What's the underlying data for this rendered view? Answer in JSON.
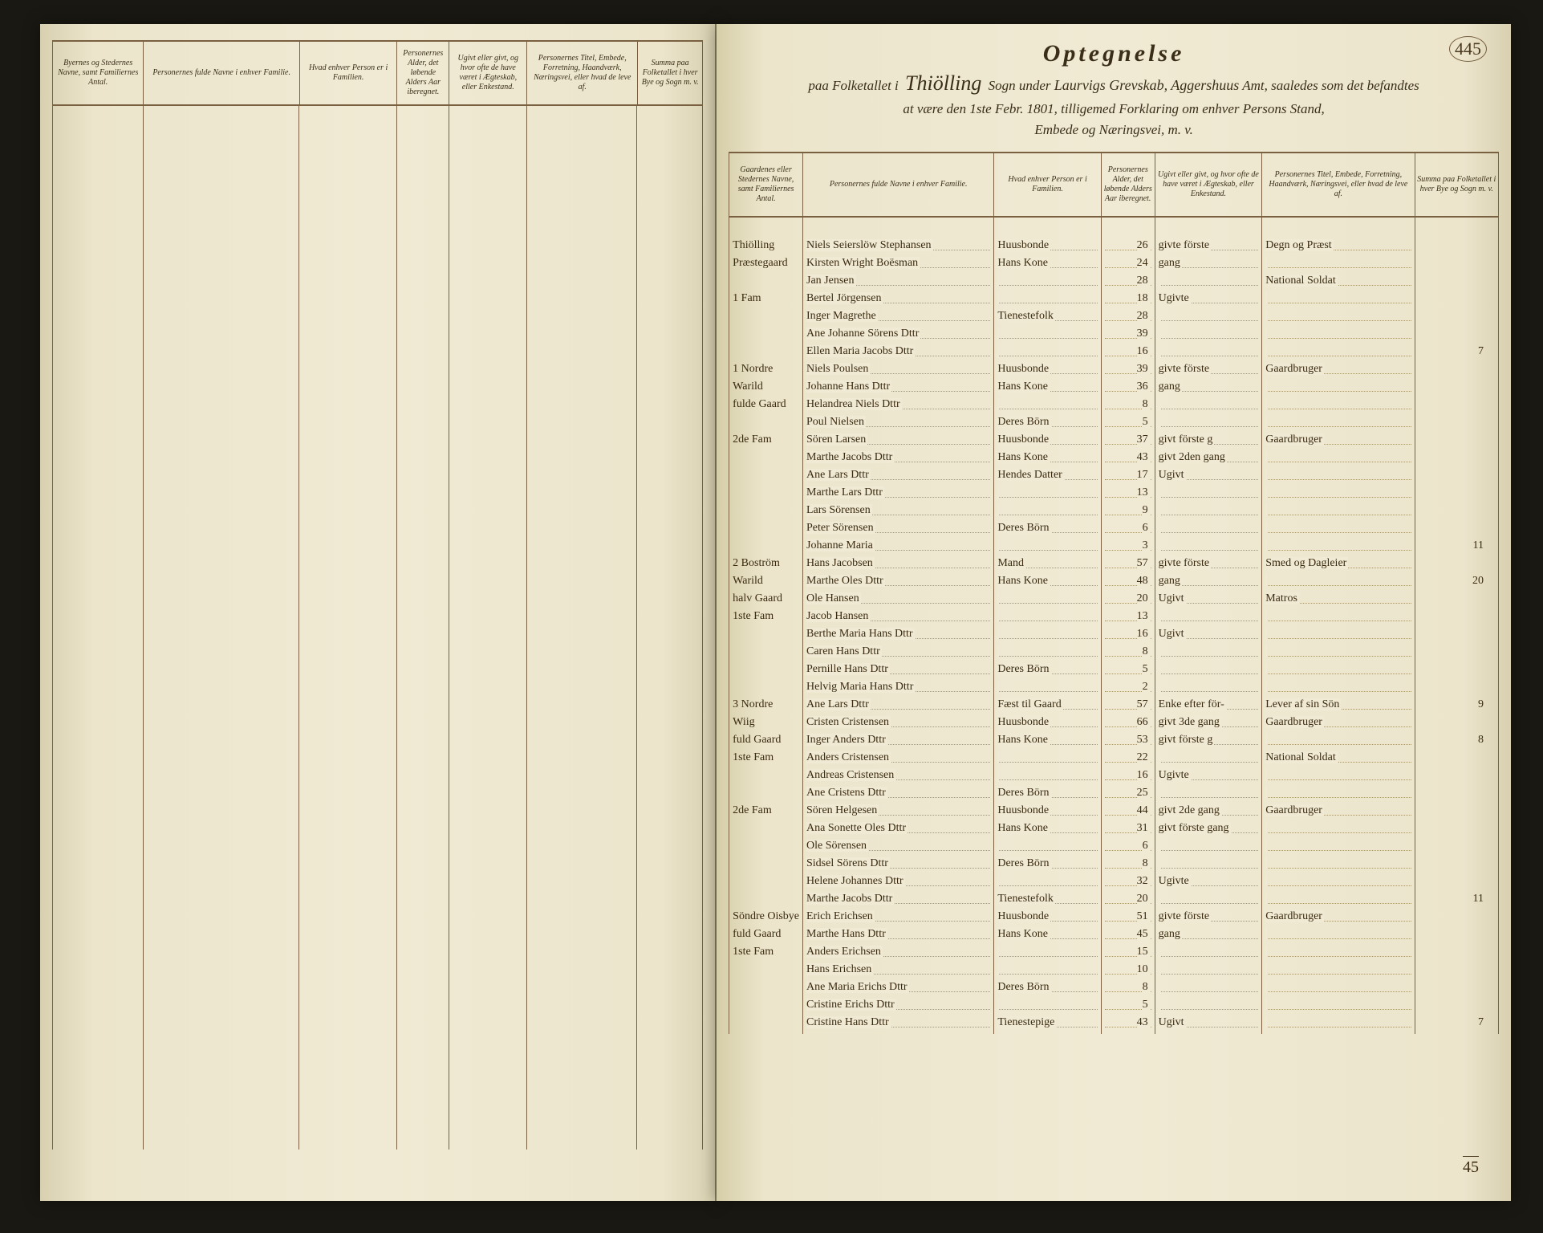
{
  "page_number": "445",
  "title": {
    "heading": "Optegnelse",
    "line2_pre": "paa Folketallet i",
    "sogn": "Thiölling",
    "line2_mid": "Sogn under",
    "amt": "Laurvigs Grevskab, Aggershuus",
    "line2_post": "Amt, saaledes som det befandtes",
    "line3": "at være den 1ste Febr. 1801, tilligemed Forklaring om enhver Persons Stand,",
    "line4": "Embede og Næringsvei, m. v."
  },
  "columns": {
    "c1": "Gaardenes eller Stedernes Navne, samt Familiernes Antal.",
    "c2": "Personernes fulde Navne i enhver Familie.",
    "c3": "Hvad enhver Person er i Familien.",
    "c4": "Personernes Alder, det løbende Alders Aar iberegnet.",
    "c5": "Ugivt eller givt, og hvor ofte de have været i Ægteskab, eller Enkestand.",
    "c6": "Personernes Titel, Embede, Forretning, Haandværk, Næringsvei, eller hvad de leve af.",
    "c7": "Summa paa Folketallet i hver Bye og Sogn m. v."
  },
  "left_columns": {
    "c1": "Byernes og Stedernes Navne, samt Familiernes Antal.",
    "c2": "Personernes fulde Navne i enhver Familie.",
    "c3": "Hvad enhver Person er i Familien.",
    "c4": "Personernes Alder, det løbende Alders Aar iberegnet.",
    "c5": "Ugivt eller givt, og hvor ofte de have været i Ægteskab, eller Enkestand.",
    "c6": "Personernes Titel, Embede, Forretning, Haandværk, Næringsvei, eller hvad de leve af.",
    "c7": "Summa paa Folketallet i hver Bye og Sogn m. v."
  },
  "left_col_widths": [
    "14%",
    "24%",
    "15%",
    "8%",
    "12%",
    "17%",
    "10%"
  ],
  "rows": [
    {
      "g": "Thiölling",
      "n": "Niels Seierslöw Stephansen",
      "f": "Huusbonde",
      "a": "26",
      "m": "givte förste",
      "t": "Degn og Præst",
      "s": ""
    },
    {
      "g": "Præstegaard",
      "n": "Kirsten Wright Boësman",
      "f": "Hans Kone",
      "a": "24",
      "m": "gang",
      "t": "",
      "s": ""
    },
    {
      "g": "",
      "n": "Jan Jensen",
      "f": "",
      "a": "28",
      "m": "",
      "t": "National Soldat",
      "s": ""
    },
    {
      "g": "1 Fam",
      "n": "Bertel Jörgensen",
      "f": "",
      "a": "18",
      "m": "Ugivte",
      "t": "",
      "s": ""
    },
    {
      "g": "",
      "n": "Inger Magrethe",
      "f": "Tienestefolk",
      "a": "28",
      "m": "",
      "t": "",
      "s": ""
    },
    {
      "g": "",
      "n": "Ane Johanne Sörens Dttr",
      "f": "",
      "a": "39",
      "m": "",
      "t": "",
      "s": ""
    },
    {
      "g": "",
      "n": "Ellen Maria Jacobs Dttr",
      "f": "",
      "a": "16",
      "m": "",
      "t": "",
      "s": "7"
    },
    {
      "g": "1 Nordre",
      "n": "Niels Poulsen",
      "f": "Huusbonde",
      "a": "39",
      "m": "givte förste",
      "t": "Gaardbruger",
      "s": ""
    },
    {
      "g": "Warild",
      "n": "Johanne Hans Dttr",
      "f": "Hans Kone",
      "a": "36",
      "m": "gang",
      "t": "",
      "s": ""
    },
    {
      "g": "fulde Gaard",
      "n": "Helandrea Niels Dttr",
      "f": "",
      "a": "8",
      "m": "",
      "t": "",
      "s": ""
    },
    {
      "g": "",
      "n": "Poul Nielsen",
      "f": "Deres Börn",
      "a": "5",
      "m": "",
      "t": "",
      "s": ""
    },
    {
      "g": "2de Fam",
      "n": "Sören Larsen",
      "f": "Huusbonde",
      "a": "37",
      "m": "givt förste g",
      "t": "Gaardbruger",
      "s": ""
    },
    {
      "g": "",
      "n": "Marthe Jacobs Dttr",
      "f": "Hans Kone",
      "a": "43",
      "m": "givt 2den gang",
      "t": "",
      "s": ""
    },
    {
      "g": "",
      "n": "Ane Lars Dttr",
      "f": "Hendes Datter",
      "a": "17",
      "m": "Ugivt",
      "t": "",
      "s": ""
    },
    {
      "g": "",
      "n": "Marthe Lars Dttr",
      "f": "",
      "a": "13",
      "m": "",
      "t": "",
      "s": ""
    },
    {
      "g": "",
      "n": "Lars Sörensen",
      "f": "",
      "a": "9",
      "m": "",
      "t": "",
      "s": ""
    },
    {
      "g": "",
      "n": "Peter Sörensen",
      "f": "Deres Börn",
      "a": "6",
      "m": "",
      "t": "",
      "s": ""
    },
    {
      "g": "",
      "n": "Johanne Maria",
      "f": "",
      "a": "3",
      "m": "",
      "t": "",
      "s": "11"
    },
    {
      "g": "2 Boström",
      "n": "Hans Jacobsen",
      "f": "Mand",
      "a": "57",
      "m": "givte förste",
      "t": "Smed og Dagleier",
      "s": ""
    },
    {
      "g": "Warild",
      "n": "Marthe Oles Dttr",
      "f": "Hans Kone",
      "a": "48",
      "m": "gang",
      "t": "",
      "s": "20"
    },
    {
      "g": "halv Gaard",
      "n": "Ole Hansen",
      "f": "",
      "a": "20",
      "m": "Ugivt",
      "t": "Matros",
      "s": ""
    },
    {
      "g": "1ste Fam",
      "n": "Jacob Hansen",
      "f": "",
      "a": "13",
      "m": "",
      "t": "",
      "s": ""
    },
    {
      "g": "",
      "n": "Berthe Maria Hans Dttr",
      "f": "",
      "a": "16",
      "m": "Ugivt",
      "t": "",
      "s": ""
    },
    {
      "g": "",
      "n": "Caren Hans Dttr",
      "f": "",
      "a": "8",
      "m": "",
      "t": "",
      "s": ""
    },
    {
      "g": "",
      "n": "Pernille Hans Dttr",
      "f": "Deres Börn",
      "a": "5",
      "m": "",
      "t": "",
      "s": ""
    },
    {
      "g": "",
      "n": "Helvig Maria Hans Dttr",
      "f": "",
      "a": "2",
      "m": "",
      "t": "",
      "s": ""
    },
    {
      "g": "3 Nordre",
      "n": "Ane Lars Dttr",
      "f": "Fæst til Gaard",
      "a": "57",
      "m": "Enke efter för-",
      "t": "Lever af sin Sön",
      "s": "9"
    },
    {
      "g": "Wiig",
      "n": "Cristen Cristensen",
      "f": "Huusbonde",
      "a": "66",
      "m": "givt 3de gang",
      "t": "Gaardbruger",
      "s": ""
    },
    {
      "g": "fuld Gaard",
      "n": "Inger Anders Dttr",
      "f": "Hans Kone",
      "a": "53",
      "m": "givt förste g",
      "t": "",
      "s": "8"
    },
    {
      "g": "1ste Fam",
      "n": "Anders Cristensen",
      "f": "",
      "a": "22",
      "m": "",
      "t": "National Soldat",
      "s": ""
    },
    {
      "g": "",
      "n": "Andreas Cristensen",
      "f": "",
      "a": "16",
      "m": "Ugivte",
      "t": "",
      "s": ""
    },
    {
      "g": "",
      "n": "Ane Cristens Dttr",
      "f": "Deres Börn",
      "a": "25",
      "m": "",
      "t": "",
      "s": ""
    },
    {
      "g": "2de Fam",
      "n": "Sören Helgesen",
      "f": "Huusbonde",
      "a": "44",
      "m": "givt 2de gang",
      "t": "Gaardbruger",
      "s": ""
    },
    {
      "g": "",
      "n": "Ana Sonette Oles Dttr",
      "f": "Hans Kone",
      "a": "31",
      "m": "givt förste gang",
      "t": "",
      "s": ""
    },
    {
      "g": "",
      "n": "Ole Sörensen",
      "f": "",
      "a": "6",
      "m": "",
      "t": "",
      "s": ""
    },
    {
      "g": "",
      "n": "Sidsel Sörens Dttr",
      "f": "Deres Börn",
      "a": "8",
      "m": "",
      "t": "",
      "s": ""
    },
    {
      "g": "",
      "n": "Helene Johannes Dttr",
      "f": "",
      "a": "32",
      "m": "Ugivte",
      "t": "",
      "s": ""
    },
    {
      "g": "",
      "n": "Marthe Jacobs Dttr",
      "f": "Tienestefolk",
      "a": "20",
      "m": "",
      "t": "",
      "s": "11"
    },
    {
      "g": "Söndre Oisbye",
      "n": "Erich Erichsen",
      "f": "Huusbonde",
      "a": "51",
      "m": "givte förste",
      "t": "Gaardbruger",
      "s": ""
    },
    {
      "g": "fuld Gaard",
      "n": "Marthe Hans Dttr",
      "f": "Hans Kone",
      "a": "45",
      "m": "gang",
      "t": "",
      "s": ""
    },
    {
      "g": "1ste Fam",
      "n": "Anders Erichsen",
      "f": "",
      "a": "15",
      "m": "",
      "t": "",
      "s": ""
    },
    {
      "g": "",
      "n": "Hans Erichsen",
      "f": "",
      "a": "10",
      "m": "",
      "t": "",
      "s": ""
    },
    {
      "g": "",
      "n": "Ane Maria Erichs Dttr",
      "f": "Deres Börn",
      "a": "8",
      "m": "",
      "t": "",
      "s": ""
    },
    {
      "g": "",
      "n": "Cristine Erichs Dttr",
      "f": "",
      "a": "5",
      "m": "",
      "t": "",
      "s": ""
    },
    {
      "g": "",
      "n": "Cristine Hans Dttr",
      "f": "Tienestepige",
      "a": "43",
      "m": "Ugivt",
      "t": "",
      "s": "7"
    }
  ],
  "footer_total": "45",
  "colors": {
    "paper": "#f0ead4",
    "ink": "#3a2a10",
    "rule": "#786040",
    "shadow": "#1a1812"
  }
}
